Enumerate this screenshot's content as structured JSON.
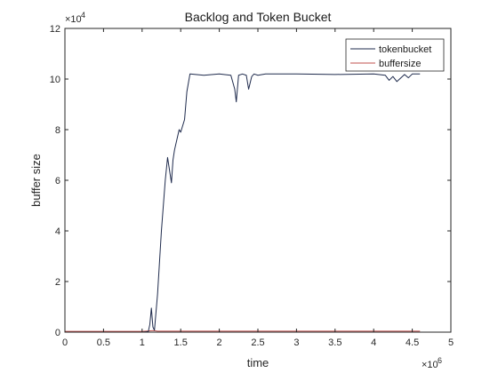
{
  "chart_data": {
    "type": "line",
    "title": "Backlog and Token Bucket",
    "xlabel": "time",
    "ylabel": "buffer size",
    "xlim": [
      0,
      5000000
    ],
    "ylim": [
      0,
      120000
    ],
    "x_ticks": [
      0,
      500000,
      1000000,
      1500000,
      2000000,
      2500000,
      3000000,
      3500000,
      4000000,
      4500000,
      5000000
    ],
    "x_tick_labels": [
      "0",
      "0.5",
      "1",
      "1.5",
      "2",
      "2.5",
      "3",
      "3.5",
      "4",
      "4.5",
      "5"
    ],
    "y_ticks": [
      0,
      20000,
      40000,
      60000,
      80000,
      100000,
      120000
    ],
    "y_tick_labels": [
      "0",
      "2",
      "4",
      "6",
      "8",
      "10",
      "12"
    ],
    "x_exponent": {
      "base": "×10",
      "power": "6"
    },
    "y_exponent": {
      "base": "×10",
      "power": "4"
    },
    "legend": {
      "placement": "top-right",
      "entries": [
        "tokenbucket",
        "buffersize"
      ]
    },
    "grid": false,
    "series": [
      {
        "name": "tokenbucket",
        "color": "#1f2b4d",
        "x": [
          0,
          1000000,
          1080000,
          1100000,
          1120000,
          1140000,
          1160000,
          1200000,
          1250000,
          1300000,
          1330000,
          1350000,
          1380000,
          1400000,
          1420000,
          1450000,
          1480000,
          1500000,
          1520000,
          1550000,
          1580000,
          1620000,
          1800000,
          2000000,
          2150000,
          2200000,
          2220000,
          2250000,
          2300000,
          2350000,
          2380000,
          2400000,
          2420000,
          2450000,
          2500000,
          2600000,
          3000000,
          3500000,
          4000000,
          4150000,
          4200000,
          4250000,
          4300000,
          4400000,
          4450000,
          4500000,
          4600000
        ],
        "y": [
          0,
          0,
          200,
          3000,
          9500,
          2000,
          800,
          15000,
          40000,
          60000,
          69000,
          65000,
          59000,
          68000,
          72000,
          76000,
          80000,
          79000,
          81000,
          84000,
          95000,
          102000,
          101500,
          102000,
          101500,
          96000,
          91000,
          101500,
          102000,
          101500,
          96000,
          98500,
          101000,
          102000,
          101500,
          102000,
          102000,
          101800,
          102000,
          101500,
          99500,
          101000,
          99000,
          101800,
          100500,
          102000,
          102000
        ]
      },
      {
        "name": "buffersize",
        "color": "#c0504d",
        "x": [
          0,
          1000000,
          1150000,
          1200000,
          2000000,
          3000000,
          4000000,
          4600000
        ],
        "y": [
          300,
          300,
          600,
          400,
          400,
          400,
          400,
          400
        ]
      }
    ]
  }
}
